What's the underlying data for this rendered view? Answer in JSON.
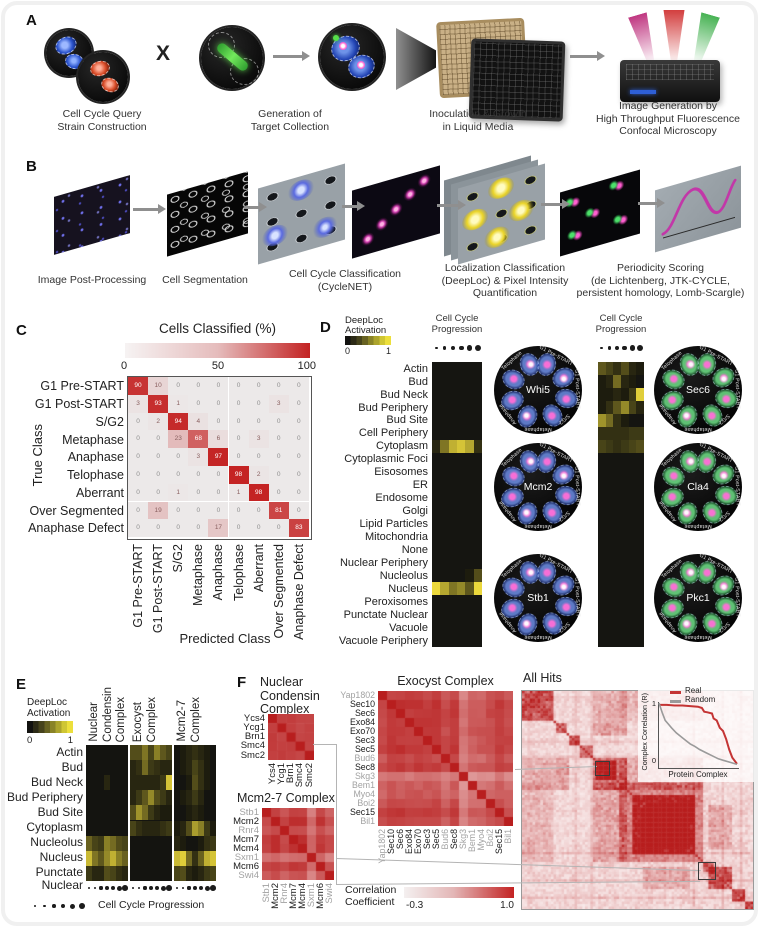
{
  "panelA": {
    "label": "A",
    "cross": "X",
    "captions": [
      "Cell Cycle Query\nStrain Construction",
      "Generation of\nTarget Collection",
      "Inoculation & Growth\nin Liquid Media",
      "Image Generation by\nHigh Throughput Fluorescence\nConfocal Microscopy"
    ]
  },
  "panelB": {
    "label": "B",
    "captions": [
      "Image Post-Processing",
      "Cell Segmentation",
      "Cell Cycle Classification\n(CycleNET)",
      "Localization Classification\n(DeepLoc) & Pixel Intensity\nQuantification",
      "Periodicity Scoring\n(de Lichtenberg, JTK-CYCLE,\npersistent homology, Lomb-Scargle)"
    ]
  },
  "panelC": {
    "label": "C",
    "title": "Cells Classified (%)",
    "colorbar_ticks": [
      "0",
      "50",
      "100"
    ],
    "y_axis": "True Class",
    "x_axis": "Predicted Class",
    "classes": [
      "G1 Pre-START",
      "G1 Post-START",
      "S/G2",
      "Metaphase",
      "Anaphase",
      "Telophase",
      "Aberrant",
      "Over Segmented",
      "Anaphase Defect"
    ],
    "matrix": [
      [
        90,
        10,
        0,
        0,
        0,
        0,
        0,
        0,
        0
      ],
      [
        3,
        93,
        1,
        0,
        0,
        0,
        0,
        3,
        0
      ],
      [
        0,
        2,
        94,
        4,
        0,
        0,
        0,
        0,
        0
      ],
      [
        0,
        0,
        23,
        68,
        6,
        0,
        3,
        0,
        0
      ],
      [
        0,
        0,
        0,
        3,
        97,
        0,
        0,
        0,
        0
      ],
      [
        0,
        0,
        0,
        0,
        0,
        98,
        2,
        0,
        0
      ],
      [
        0,
        0,
        1,
        0,
        0,
        1,
        98,
        0,
        0
      ],
      [
        0,
        19,
        0,
        0,
        0,
        0,
        0,
        81,
        0
      ],
      [
        0,
        0,
        0,
        0,
        17,
        0,
        0,
        0,
        83
      ]
    ]
  },
  "panelD": {
    "label": "D",
    "legend_line1": "DeepLoc",
    "legend_line2": "Activation",
    "legend_min": "0",
    "legend_max": "1",
    "cc_label": "Cell Cycle\nProgression",
    "rows": [
      "Actin",
      "Bud",
      "Bud Neck",
      "Bud Periphery",
      "Bud Site",
      "Cell Periphery",
      "Cytoplasm",
      "Cytoplasmic Foci",
      "Eisosomes",
      "ER",
      "Endosome",
      "Golgi",
      "Lipid Particles",
      "Mitochondria",
      "None",
      "Nuclear Periphery",
      "Nucleolus",
      "Nucleus",
      "Peroxisomes",
      "Punctate Nuclear",
      "Vacuole",
      "Vacuole Periphery"
    ],
    "left_heatmap": {
      "Cytoplasm": [
        0.1,
        0.5,
        0.8,
        0.9,
        0.75,
        0.15
      ],
      "Nucleolus": [
        0,
        0,
        0,
        0,
        0.05,
        0.3
      ],
      "Nucleus": [
        1,
        0.75,
        0.5,
        0.6,
        0.35,
        1
      ]
    },
    "right_heatmap": {
      "Actin": [
        0.35,
        0.25,
        0.15,
        0.3,
        0.1,
        0.05
      ],
      "Bud": [
        0.05,
        0.1,
        0.45,
        0.1,
        0.05,
        0
      ],
      "Bud Neck": [
        0.05,
        0.05,
        0.1,
        0.05,
        0.2,
        0.95
      ],
      "Bud Periphery": [
        0.05,
        0.15,
        0.35,
        0.6,
        0.25,
        0.1
      ],
      "Bud Site": [
        0.65,
        0.45,
        0.15,
        0.05,
        0,
        0
      ],
      "Cell Periphery": [
        0.15,
        0.15,
        0.15,
        0.15,
        0.2,
        0.2
      ],
      "Cytoplasm": [
        0.25,
        0.2,
        0.15,
        0.2,
        0.25,
        0.3
      ]
    },
    "left_cells": [
      "Whi5",
      "Mcm2",
      "Stb1"
    ],
    "right_cells": [
      "Sec6",
      "Cla4",
      "Pkc1"
    ],
    "phases": [
      "G1 Pre-START",
      "G1 Post-START",
      "S/G2",
      "Metaphase",
      "Anaphase",
      "Telophase"
    ]
  },
  "panelE": {
    "label": "E",
    "legend_line1": "DeepLoc",
    "legend_line2": "Activation",
    "legend_min": "0",
    "legend_max": "1",
    "groups": [
      {
        "name_lines": [
          "Nuclear",
          "Condensin",
          "Complex"
        ]
      },
      {
        "name_lines": [
          "Exocyst",
          "Complex"
        ]
      },
      {
        "name_lines": [
          "Mcm2-7",
          "Complex"
        ]
      }
    ],
    "rows": [
      "Actin",
      "Bud",
      "Bud Neck",
      "Bud Periphery",
      "Bud Site",
      "Cytoplasm",
      "Nucleolus",
      "Nucleus",
      "Punctate Nuclear"
    ],
    "heatmaps": [
      {
        "Bud Neck": [
          0,
          0,
          0,
          0.1,
          0,
          0,
          0
        ],
        "Nucleolus": [
          0.4,
          0.25,
          0.2,
          0.55,
          0.45,
          0.3,
          0.25
        ],
        "Nucleus": [
          0.85,
          0.5,
          0.35,
          0.6,
          0.8,
          0.55,
          0.4
        ],
        "Punctate Nuclear": [
          0.2,
          0.1,
          0.1,
          0.3,
          0.25,
          0.15,
          0.1
        ]
      },
      {
        "Actin": [
          0.3,
          0.3,
          0.5,
          0.25,
          0.55,
          0.35,
          0.25
        ],
        "Bud": [
          0.1,
          0.15,
          0.45,
          0.2,
          0.15,
          0.1,
          0.1
        ],
        "Bud Neck": [
          0.1,
          0.1,
          0.1,
          0.1,
          0.1,
          0.2,
          0.9
        ],
        "Bud Periphery": [
          0.1,
          0.2,
          0.35,
          0.6,
          0.3,
          0.2,
          0.1
        ],
        "Bud Site": [
          0.3,
          0.65,
          0.45,
          0.2,
          0.1,
          0.05,
          0.05
        ],
        "Cytoplasm": [
          0.25,
          0.15,
          0.1,
          0.1,
          0.1,
          0.15,
          0.2
        ]
      },
      {
        "Actin": [
          0,
          0.05,
          0.1,
          0.15,
          0.1,
          0.05,
          0
        ],
        "Bud": [
          0,
          0.05,
          0.1,
          0.25,
          0.15,
          0.05,
          0
        ],
        "Bud Neck": [
          0,
          0,
          0.05,
          0.3,
          0.15,
          0.05,
          0
        ],
        "Bud Periphery": [
          0,
          0.05,
          0.1,
          0.2,
          0.1,
          0,
          0
        ],
        "Bud Site": [
          0,
          0,
          0.05,
          0.1,
          0.05,
          0,
          0
        ],
        "Cytoplasm": [
          0.05,
          0.1,
          0.3,
          0.7,
          0.55,
          0.2,
          0.05
        ],
        "Nucleolus": [
          0.1,
          0.05,
          0,
          0,
          0.05,
          0.15,
          0.2
        ],
        "Nucleus": [
          0.85,
          0.95,
          0.45,
          0.15,
          0.4,
          0.8,
          0.9
        ],
        "Punctate Nuclear": [
          0.25,
          0.3,
          0.1,
          0.05,
          0.1,
          0.2,
          0.25
        ]
      }
    ],
    "cc_label": "Cell Cycle Progression"
  },
  "panelF": {
    "label": "F",
    "nc": {
      "title": "Nuclear\nCondensin\nComplex",
      "proteins": [
        "Ycs4",
        "Ycg1",
        "Brn1",
        "Smc4",
        "Smc2"
      ],
      "gray": [
        0,
        0,
        0,
        0,
        0
      ],
      "dim": [
        0.03,
        0.04,
        0.03,
        0.05,
        0.04
      ]
    },
    "mcm": {
      "title": "Mcm2-7 Complex",
      "proteins": [
        "Stb1",
        "Mcm2",
        "Rnr4",
        "Mcm7",
        "Mcm4",
        "Sxm1",
        "Mcm6",
        "Swi4"
      ],
      "gray": [
        1,
        0,
        1,
        0,
        0,
        1,
        0,
        1
      ],
      "dim": [
        0.07,
        0.02,
        0.08,
        0.02,
        0.02,
        0.17,
        0.03,
        0.1
      ]
    },
    "exo": {
      "title": "Exocyst Complex",
      "proteins": [
        "Yap1802",
        "Sec10",
        "Sec6",
        "Exo84",
        "Exo70",
        "Sec3",
        "Sec5",
        "Bud6",
        "Sec8",
        "Skg3",
        "Bem1",
        "Myo4",
        "Boi2",
        "Sec15",
        "Bil1"
      ],
      "gray": [
        1,
        0,
        0,
        0,
        0,
        0,
        0,
        1,
        0,
        1,
        1,
        1,
        1,
        0,
        1
      ],
      "dim": [
        0.06,
        0.02,
        0.02,
        0.03,
        0.02,
        0.03,
        0.02,
        0.08,
        0.03,
        0.2,
        0.13,
        0.12,
        0.08,
        0.03,
        0.07
      ]
    },
    "allhits": {
      "title": "All Hits",
      "clusters": [
        [
          0,
          0.135,
          0.62
        ],
        [
          0.145,
          0.045,
          0.5
        ],
        [
          0.195,
          0.05,
          0.55
        ],
        [
          0.25,
          0.05,
          0.45
        ],
        [
          0.3,
          0.15,
          0.42
        ],
        [
          0.315,
          0.09,
          0.6
        ],
        [
          0.42,
          0.36,
          0.38
        ],
        [
          0.47,
          0.28,
          0.55
        ],
        [
          0.52,
          0.2,
          0.68
        ],
        [
          0.78,
          0.045,
          0.5
        ],
        [
          0.8,
          0.1,
          0.62
        ],
        [
          0.9,
          0.055,
          0.6
        ],
        [
          0.955,
          0.045,
          0.65
        ]
      ],
      "cross": [
        [
          0.42,
          0.3,
          0.36,
          0.15,
          0.22
        ],
        [
          0,
          0.3,
          0.14,
          0.15,
          0.18
        ],
        [
          0.42,
          0,
          0.36,
          0.135,
          0.15
        ],
        [
          0.8,
          0.52,
          0.1,
          0.2,
          0.2
        ],
        [
          0.3,
          0.145,
          0.15,
          0.05,
          0.25
        ]
      ]
    },
    "inset": {
      "legend": [
        {
          "label": "Real",
          "color": "#c43434"
        },
        {
          "label": "Random",
          "color": "#9a9a9a"
        }
      ],
      "ylabel": "Complex Correlation (R)",
      "xlabel": "Protein Complex",
      "yticks": [
        "1",
        "0"
      ],
      "real": [
        [
          0,
          0.97
        ],
        [
          0.1,
          0.97
        ],
        [
          0.2,
          0.96
        ],
        [
          0.3,
          0.96
        ],
        [
          0.4,
          0.95
        ],
        [
          0.5,
          0.94
        ],
        [
          0.55,
          0.92
        ],
        [
          0.58,
          0.86
        ],
        [
          0.62,
          0.85
        ],
        [
          0.68,
          0.83
        ],
        [
          0.7,
          0.75
        ],
        [
          0.74,
          0.72
        ],
        [
          0.78,
          0.6
        ],
        [
          0.82,
          0.55
        ],
        [
          0.86,
          0.42
        ],
        [
          0.9,
          0.25
        ],
        [
          0.94,
          0.12
        ],
        [
          1,
          0.02
        ]
      ],
      "random": [
        [
          0,
          1
        ],
        [
          0.04,
          0.85
        ],
        [
          0.08,
          0.72
        ],
        [
          0.12,
          0.66
        ],
        [
          0.16,
          0.6
        ],
        [
          0.22,
          0.52
        ],
        [
          0.28,
          0.46
        ],
        [
          0.34,
          0.4
        ],
        [
          0.4,
          0.34
        ],
        [
          0.46,
          0.3
        ],
        [
          0.52,
          0.25
        ],
        [
          0.6,
          0.2
        ],
        [
          0.68,
          0.15
        ],
        [
          0.76,
          0.1
        ],
        [
          0.84,
          0.07
        ],
        [
          0.92,
          0.04
        ],
        [
          1,
          0.01
        ]
      ]
    },
    "cbar_label": "Correlation\nCoefficient",
    "cbar_min": "-0.3",
    "cbar_max": "1.0"
  }
}
